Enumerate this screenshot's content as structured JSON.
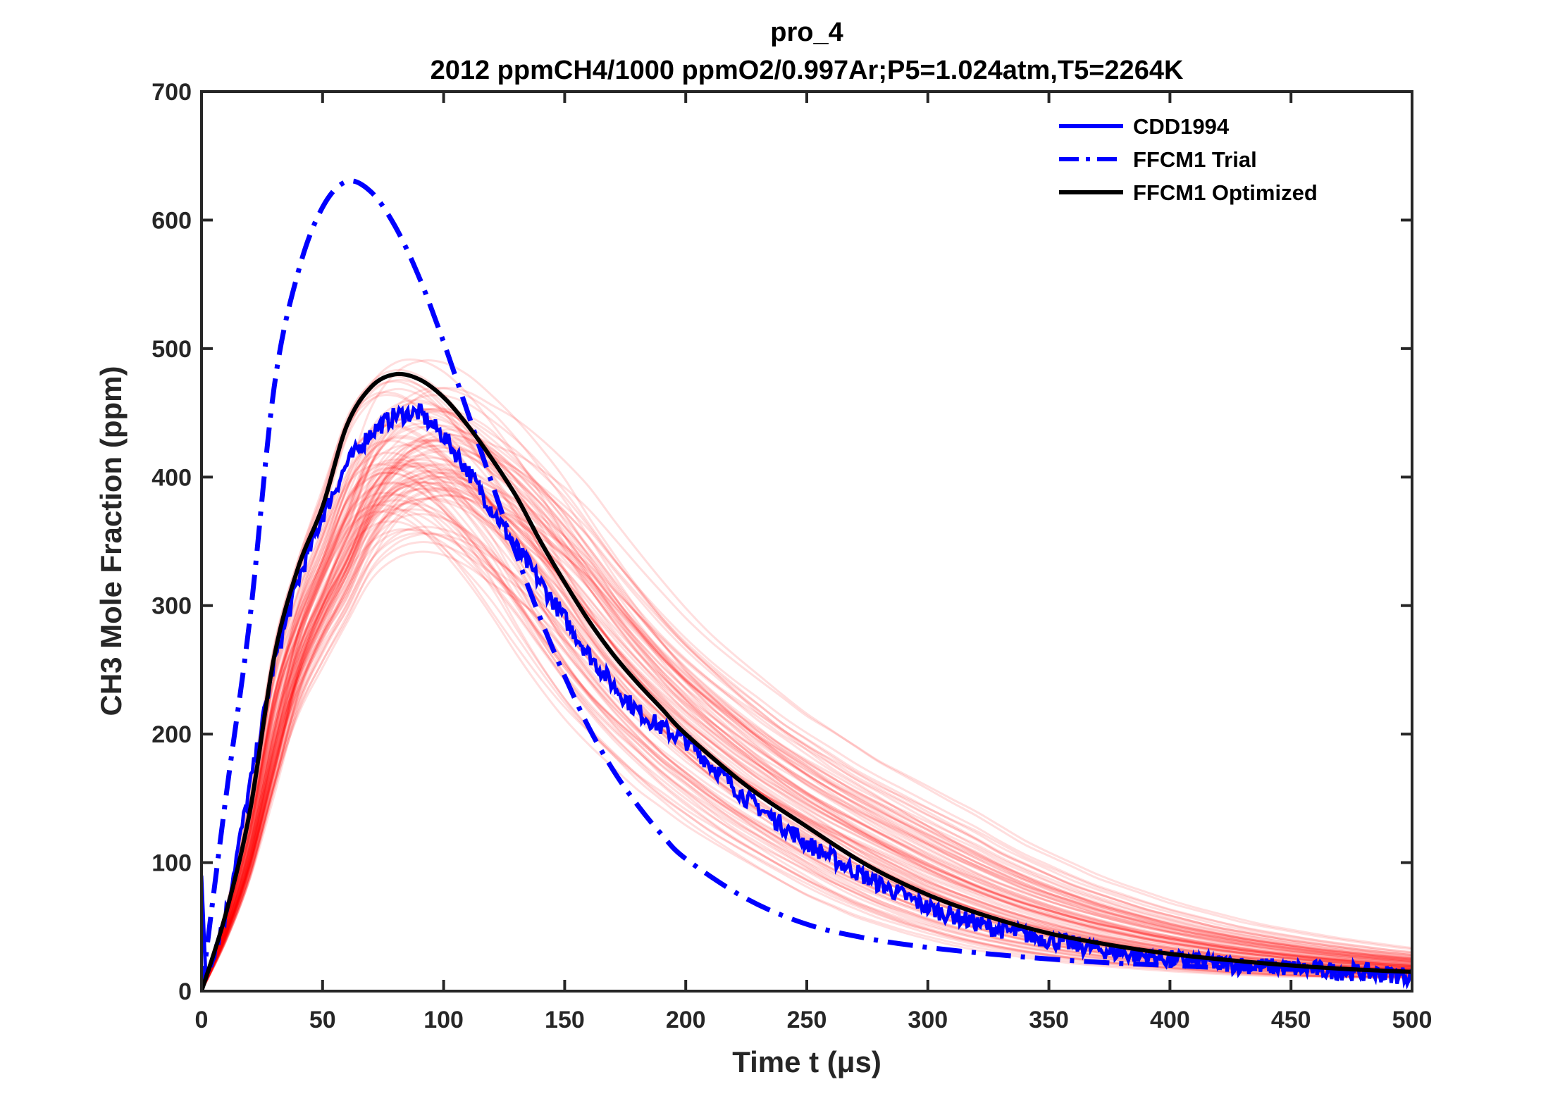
{
  "chart_data": {
    "type": "line",
    "title": "pro_4",
    "subtitle": "2012 ppmCH4/1000 ppmO2/0.997Ar;P5=1.024atm,T5=2264K",
    "xlabel": "Time t (μs)",
    "ylabel": "CH3 Mole Fraction (ppm)",
    "xlim": [
      0,
      500
    ],
    "ylim": [
      0,
      700
    ],
    "xticks": [
      0,
      50,
      100,
      150,
      200,
      250,
      300,
      350,
      400,
      450,
      500
    ],
    "yticks": [
      0,
      100,
      200,
      300,
      400,
      500,
      600,
      700
    ],
    "grid": false,
    "legend_position": "top-right",
    "x": [
      0,
      10,
      20,
      30,
      40,
      50,
      60,
      70,
      80,
      90,
      100,
      110,
      120,
      130,
      140,
      150,
      160,
      170,
      180,
      190,
      200,
      225,
      250,
      275,
      300,
      325,
      350,
      375,
      400,
      425,
      450,
      475,
      500
    ],
    "series": [
      {
        "name": "CDD1994",
        "color": "#0000ff",
        "style": "solid",
        "values": [
          0,
          60,
          160,
          255,
          320,
          370,
          410,
          435,
          448,
          450,
          432,
          405,
          375,
          345,
          318,
          290,
          262,
          238,
          218,
          205,
          195,
          150,
          115,
          88,
          65,
          50,
          40,
          31,
          25,
          21,
          18,
          15,
          12
        ]
      },
      {
        "name": "FFCM1 Trial",
        "color": "#0000ff",
        "style": "dashdot",
        "values": [
          0,
          150,
          290,
          470,
          560,
          610,
          630,
          622,
          595,
          555,
          505,
          450,
          395,
          340,
          290,
          245,
          205,
          172,
          145,
          122,
          103,
          72,
          52,
          41,
          34,
          29,
          25,
          22,
          20,
          18,
          17,
          16,
          15
        ]
      },
      {
        "name": "FFCM1 Optimized",
        "color": "#000000",
        "style": "solid",
        "values": [
          0,
          60,
          140,
          260,
          330,
          377,
          440,
          470,
          480,
          476,
          462,
          440,
          414,
          385,
          350,
          318,
          288,
          262,
          240,
          220,
          200,
          160,
          128,
          98,
          75,
          58,
          45,
          36,
          29,
          24,
          20,
          17,
          15
        ]
      }
    ],
    "ensemble": {
      "color": "#ff0000",
      "count": 100,
      "peak_range_ppm": [
        340,
        525
      ]
    }
  }
}
